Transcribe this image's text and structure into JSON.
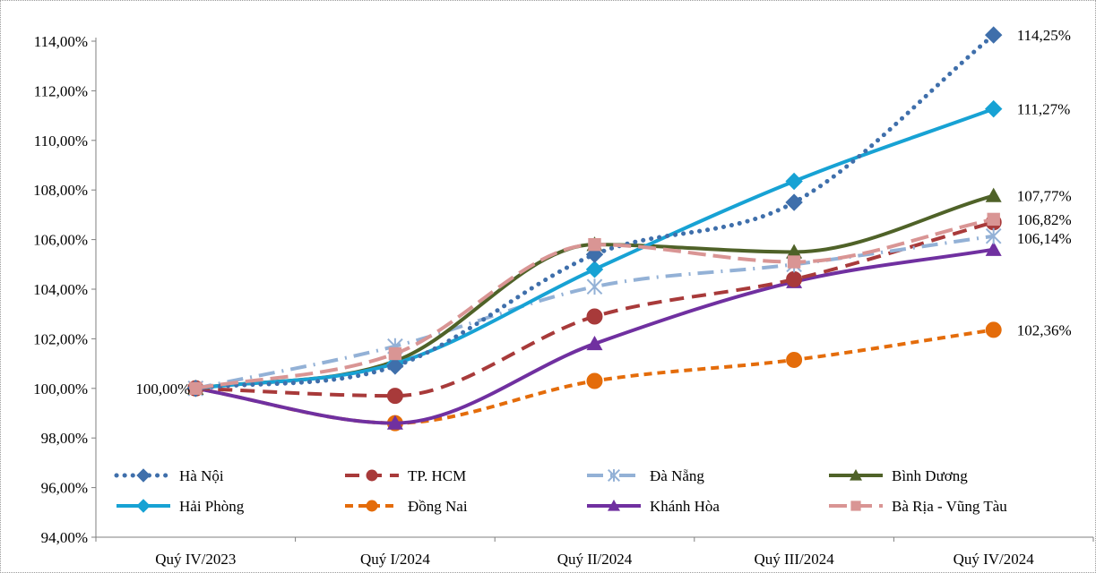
{
  "chart_data": {
    "type": "line",
    "title": "",
    "xlabel": "",
    "ylabel": "",
    "categories": [
      "Quý IV/2023",
      "Quý I/2024",
      "Quý II/2024",
      "Quý III/2024",
      "Quý IV/2024"
    ],
    "ylim": [
      94,
      114
    ],
    "ytick_step": 2,
    "ytick_labels": [
      "94,00%",
      "96,00%",
      "98,00%",
      "100,00%",
      "102,00%",
      "104,00%",
      "106,00%",
      "108,00%",
      "110,00%",
      "112,00%",
      "114,00%"
    ],
    "grid": false,
    "legend_position": "bottom-inside",
    "series": [
      {
        "name": "Hà Nội",
        "values": [
          100.0,
          100.9,
          105.4,
          107.5,
          114.25
        ],
        "color": "#3f6fab",
        "dash": "dotted",
        "marker": "diamond",
        "end_label": "114,25%"
      },
      {
        "name": "TP. HCM",
        "values": [
          100.0,
          99.7,
          102.9,
          104.4,
          106.7
        ],
        "color": "#a83a3a",
        "dash": "dashed",
        "marker": "circle",
        "end_label": ""
      },
      {
        "name": "Đà Nẵng",
        "values": [
          100.0,
          101.7,
          104.1,
          105.0,
          106.14
        ],
        "color": "#93b1d6",
        "dash": "dashdot",
        "marker": "asterisk",
        "end_label": "106,14%"
      },
      {
        "name": "Bình Dương",
        "values": [
          100.0,
          101.1,
          105.8,
          105.5,
          107.77
        ],
        "color": "#4f6228",
        "dash": "solid",
        "marker": "triangle",
        "end_label": "107,77%"
      },
      {
        "name": "Hải Phòng",
        "values": [
          100.0,
          101.0,
          104.8,
          108.35,
          111.27
        ],
        "color": "#17a2d4",
        "dash": "solid",
        "marker": "diamond",
        "end_label": "111,27%"
      },
      {
        "name": "Đồng Nai",
        "values": [
          100.0,
          98.6,
          100.3,
          101.15,
          102.36
        ],
        "color": "#e46c0a",
        "dash": "dashed-fine",
        "marker": "circle",
        "end_label": "102,36%"
      },
      {
        "name": "Khánh Hòa",
        "values": [
          100.0,
          98.6,
          101.8,
          104.3,
          105.6
        ],
        "color": "#7030a0",
        "dash": "solid",
        "marker": "triangle",
        "end_label": ""
      },
      {
        "name": "Bà Rịa - Vũng Tàu",
        "values": [
          100.0,
          101.4,
          105.8,
          105.1,
          106.82
        ],
        "color": "#d99594",
        "dash": "dashed-long",
        "marker": "square",
        "end_label": "106,82%"
      }
    ],
    "start_label": "100,00%"
  }
}
